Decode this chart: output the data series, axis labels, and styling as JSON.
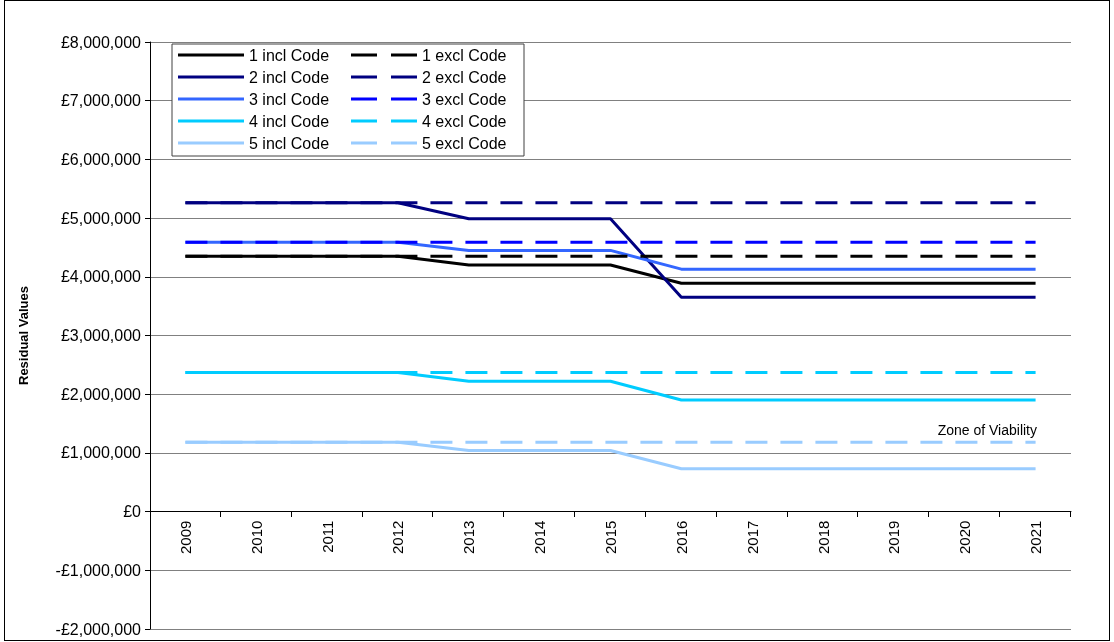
{
  "chart_data": {
    "type": "line",
    "ylabel": "Residual Values",
    "categories": [
      "2009",
      "2010",
      "2011",
      "2012",
      "2013",
      "2014",
      "2015",
      "2016",
      "2017",
      "2018",
      "2019",
      "2020",
      "2021"
    ],
    "series": [
      {
        "name": "1 incl Code",
        "color": "#000000",
        "line_style": "solid",
        "values": [
          4350000,
          4350000,
          4350000,
          4350000,
          4200000,
          4200000,
          4200000,
          3890000,
          3890000,
          3890000,
          3890000,
          3890000,
          3890000
        ]
      },
      {
        "name": "2 incl Code",
        "color": "#000080",
        "line_style": "solid",
        "values": [
          5260000,
          5260000,
          5260000,
          5260000,
          4990000,
          4990000,
          4990000,
          3650000,
          3650000,
          3650000,
          3650000,
          3650000,
          3650000
        ]
      },
      {
        "name": "3 incl Code",
        "color": "#3366ff",
        "line_style": "solid",
        "values": [
          4590000,
          4590000,
          4590000,
          4590000,
          4450000,
          4450000,
          4450000,
          4130000,
          4130000,
          4130000,
          4130000,
          4130000,
          4130000
        ]
      },
      {
        "name": "4 incl Code",
        "color": "#00ccff",
        "line_style": "solid",
        "values": [
          2370000,
          2370000,
          2370000,
          2370000,
          2220000,
          2220000,
          2220000,
          1900000,
          1900000,
          1900000,
          1900000,
          1900000,
          1900000
        ]
      },
      {
        "name": "5 incl Code",
        "color": "#99ccff",
        "line_style": "solid",
        "values": [
          1180000,
          1180000,
          1180000,
          1180000,
          1040000,
          1040000,
          1040000,
          730000,
          730000,
          730000,
          730000,
          730000,
          730000
        ]
      },
      {
        "name": "1 excl Code",
        "color": "#000000",
        "line_style": "dashed",
        "values": [
          4350000,
          4350000,
          4350000,
          4350000,
          4350000,
          4350000,
          4350000,
          4350000,
          4350000,
          4350000,
          4350000,
          4350000,
          4350000
        ]
      },
      {
        "name": "2 excl Code",
        "color": "#000080",
        "line_style": "dashed",
        "values": [
          5260000,
          5260000,
          5260000,
          5260000,
          5260000,
          5260000,
          5260000,
          5260000,
          5260000,
          5260000,
          5260000,
          5260000,
          5260000
        ]
      },
      {
        "name": "3 excl Code",
        "color": "#0000ff",
        "line_style": "dashed",
        "values": [
          4590000,
          4590000,
          4590000,
          4590000,
          4590000,
          4590000,
          4590000,
          4590000,
          4590000,
          4590000,
          4590000,
          4590000,
          4590000
        ]
      },
      {
        "name": "4 excl Code",
        "color": "#00ccff",
        "line_style": "dashed",
        "values": [
          2370000,
          2370000,
          2370000,
          2370000,
          2370000,
          2370000,
          2370000,
          2370000,
          2370000,
          2370000,
          2370000,
          2370000,
          2370000
        ]
      },
      {
        "name": "5 excl Code",
        "color": "#99ccff",
        "line_style": "dashed",
        "values": [
          1180000,
          1180000,
          1180000,
          1180000,
          1180000,
          1180000,
          1180000,
          1180000,
          1180000,
          1180000,
          1180000,
          1180000,
          1180000
        ]
      }
    ],
    "ylim": [
      -2000000,
      8000000
    ],
    "yticks": [
      {
        "value": -2000000,
        "label": "-£2,000,000"
      },
      {
        "value": -1000000,
        "label": "-£1,000,000"
      },
      {
        "value": 0,
        "label": "£0"
      },
      {
        "value": 1000000,
        "label": "£1,000,000"
      },
      {
        "value": 2000000,
        "label": "£2,000,000"
      },
      {
        "value": 3000000,
        "label": "£3,000,000"
      },
      {
        "value": 4000000,
        "label": "£4,000,000"
      },
      {
        "value": 5000000,
        "label": "£5,000,000"
      },
      {
        "value": 6000000,
        "label": "£6,000,000"
      },
      {
        "value": 7000000,
        "label": "£7,000,000"
      },
      {
        "value": 8000000,
        "label": "£8,000,000"
      }
    ],
    "annotations": [
      "Zone of Viability"
    ],
    "grid": "y",
    "legend": "top left",
    "marker": "none"
  }
}
